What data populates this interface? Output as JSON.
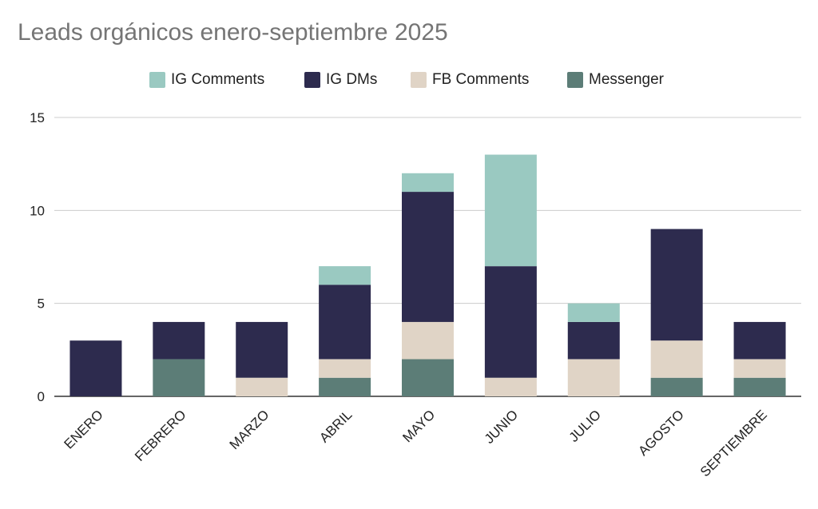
{
  "chart_data": {
    "type": "bar",
    "stacked": true,
    "title": "Leads orgánicos enero-septiembre 2025",
    "xlabel": "",
    "ylabel": "",
    "ylim": [
      0,
      15
    ],
    "yticks": [
      0,
      5,
      10,
      15
    ],
    "grid": true,
    "legend_position": "top",
    "categories": [
      "ENERO",
      "FEBRERO",
      "MARZO",
      "ABRIL",
      "MAYO",
      "JUNIO",
      "JULIO",
      "AGOSTO",
      "SEPTIEMBRE"
    ],
    "series": [
      {
        "name": "Messenger",
        "color": "#5c7d77",
        "values": [
          0,
          2,
          0,
          1,
          2,
          0,
          0,
          1,
          1
        ]
      },
      {
        "name": "FB Comments",
        "color": "#e0d4c6",
        "values": [
          0,
          0,
          1,
          1,
          2,
          1,
          2,
          2,
          1
        ]
      },
      {
        "name": "IG DMs",
        "color": "#2d2b4e",
        "values": [
          3,
          2,
          3,
          4,
          7,
          6,
          2,
          6,
          2
        ]
      },
      {
        "name": "IG Comments",
        "color": "#9ac9c1",
        "values": [
          0,
          0,
          0,
          1,
          1,
          6,
          1,
          0,
          0
        ]
      }
    ],
    "legend_order": [
      "IG Comments",
      "IG DMs",
      "FB Comments",
      "Messenger"
    ]
  }
}
